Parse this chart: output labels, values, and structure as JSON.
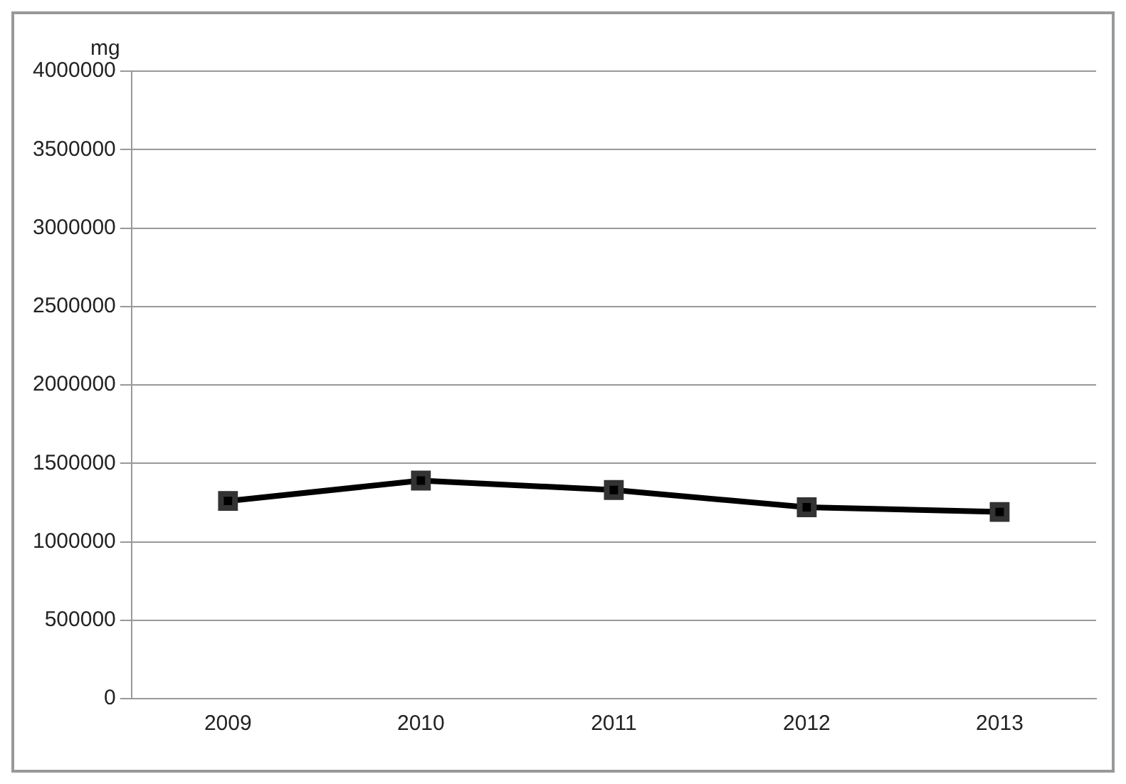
{
  "chart_data": {
    "type": "line",
    "ylabel": "mg",
    "categories": [
      "2009",
      "2010",
      "2011",
      "2012",
      "2013"
    ],
    "series": [
      {
        "color": "#000000",
        "values": [
          1260000,
          1390000,
          1330000,
          1220000,
          1190000
        ]
      }
    ],
    "ylim": [
      0,
      4000000
    ],
    "yticks": [
      0,
      500000,
      1000000,
      1500000,
      2000000,
      2500000,
      3000000,
      3500000,
      4000000
    ],
    "grid": "y",
    "marker": "square",
    "line_style": "solid",
    "legend": false
  }
}
